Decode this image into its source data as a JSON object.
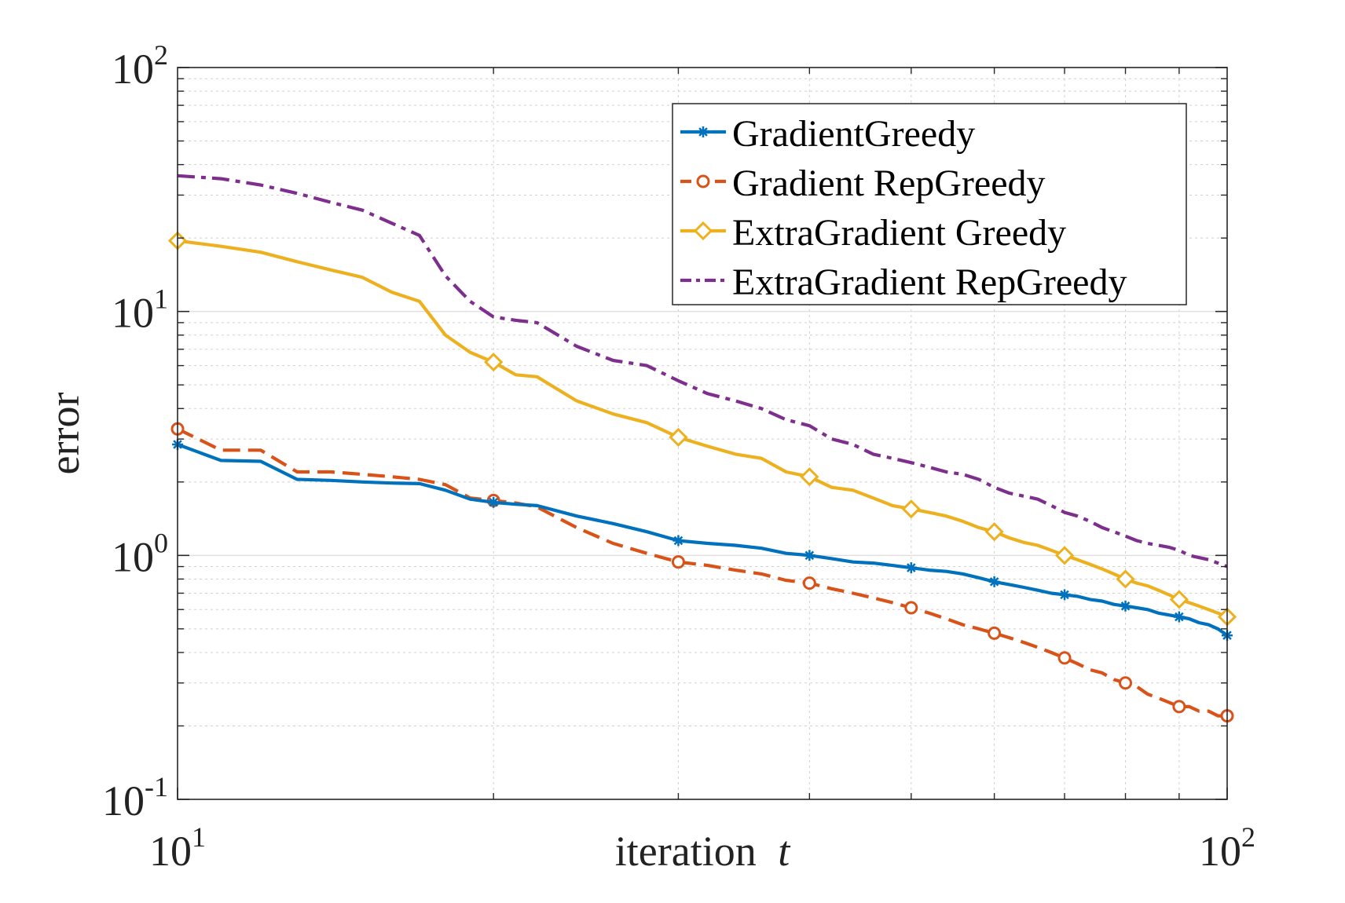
{
  "chart_data": {
    "type": "line",
    "xscale": "log",
    "yscale": "log",
    "xlim": [
      10,
      100
    ],
    "ylim": [
      0.1,
      100
    ],
    "xlabel": "iteration",
    "xlabel_var": "t",
    "ylabel": "error",
    "grid": true,
    "legend_position": "top-right",
    "x_ticks": [
      {
        "value": 10,
        "base": "10",
        "exp": "1"
      },
      {
        "value": 100,
        "base": "10",
        "exp": "2"
      }
    ],
    "y_ticks": [
      {
        "value": 0.1,
        "base": "10",
        "exp": "-1"
      },
      {
        "value": 1,
        "base": "10",
        "exp": "0"
      },
      {
        "value": 10,
        "base": "10",
        "exp": "1"
      },
      {
        "value": 100,
        "base": "10",
        "exp": "2"
      }
    ],
    "series": [
      {
        "name": "GradientGreedy",
        "color": "#0072BD",
        "dash": "",
        "marker": "star",
        "x": [
          10,
          11,
          12,
          13,
          14,
          15,
          16,
          17,
          18,
          19,
          20,
          21,
          22,
          24,
          26,
          28,
          30,
          32,
          34,
          36,
          38,
          40,
          42,
          44,
          46,
          48,
          50,
          52,
          54,
          56,
          58,
          60,
          62,
          64,
          66,
          68,
          70,
          72,
          74,
          76,
          78,
          80,
          82,
          84,
          86,
          88,
          90,
          92,
          94,
          96,
          98,
          100
        ],
        "y": [
          2.85,
          2.45,
          2.43,
          2.05,
          2.03,
          2.0,
          1.98,
          1.97,
          1.85,
          1.7,
          1.65,
          1.62,
          1.6,
          1.45,
          1.35,
          1.25,
          1.15,
          1.12,
          1.1,
          1.07,
          1.02,
          1.0,
          0.97,
          0.94,
          0.93,
          0.91,
          0.89,
          0.87,
          0.86,
          0.84,
          0.81,
          0.78,
          0.76,
          0.74,
          0.72,
          0.7,
          0.69,
          0.68,
          0.66,
          0.65,
          0.63,
          0.62,
          0.61,
          0.6,
          0.58,
          0.57,
          0.56,
          0.55,
          0.53,
          0.52,
          0.5,
          0.47
        ],
        "marker_x": [
          10,
          20,
          30,
          40,
          50,
          60,
          70,
          80,
          90,
          100
        ]
      },
      {
        "name": "Gradient RepGreedy",
        "color": "#D95319",
        "dash": "22,10",
        "marker": "circle",
        "x": [
          10,
          11,
          12,
          13,
          14,
          15,
          16,
          17,
          18,
          19,
          20,
          21,
          22,
          24,
          26,
          28,
          30,
          32,
          34,
          36,
          38,
          40,
          42,
          44,
          46,
          48,
          50,
          52,
          54,
          56,
          58,
          60,
          62,
          64,
          66,
          68,
          70,
          72,
          74,
          76,
          78,
          80,
          82,
          84,
          86,
          88,
          90,
          92,
          94,
          96,
          98,
          100
        ],
        "y": [
          3.3,
          2.7,
          2.7,
          2.2,
          2.2,
          2.15,
          2.1,
          2.05,
          1.95,
          1.72,
          1.68,
          1.64,
          1.58,
          1.3,
          1.12,
          1.02,
          0.94,
          0.91,
          0.87,
          0.84,
          0.79,
          0.77,
          0.73,
          0.7,
          0.67,
          0.64,
          0.61,
          0.58,
          0.55,
          0.52,
          0.5,
          0.48,
          0.46,
          0.44,
          0.42,
          0.4,
          0.38,
          0.36,
          0.34,
          0.33,
          0.31,
          0.3,
          0.29,
          0.27,
          0.26,
          0.25,
          0.24,
          0.24,
          0.23,
          0.23,
          0.22,
          0.22
        ],
        "marker_x": [
          10,
          20,
          30,
          40,
          50,
          60,
          70,
          80,
          90,
          100
        ]
      },
      {
        "name": "ExtraGradient Greedy",
        "color": "#EDB120",
        "dash": "",
        "marker": "diamond",
        "x": [
          10,
          11,
          12,
          13,
          14,
          15,
          16,
          17,
          18,
          19,
          20,
          21,
          22,
          24,
          26,
          28,
          30,
          32,
          34,
          36,
          38,
          40,
          42,
          44,
          46,
          48,
          50,
          52,
          54,
          56,
          58,
          60,
          62,
          64,
          66,
          68,
          70,
          72,
          74,
          76,
          78,
          80,
          82,
          84,
          86,
          88,
          90,
          92,
          94,
          96,
          98,
          100
        ],
        "y": [
          19.5,
          18.5,
          17.5,
          16.0,
          14.8,
          13.8,
          12.0,
          11.0,
          8.0,
          6.8,
          6.2,
          5.5,
          5.4,
          4.3,
          3.8,
          3.5,
          3.05,
          2.8,
          2.6,
          2.5,
          2.2,
          2.1,
          1.9,
          1.85,
          1.72,
          1.6,
          1.55,
          1.5,
          1.45,
          1.38,
          1.3,
          1.25,
          1.18,
          1.13,
          1.1,
          1.05,
          1.0,
          0.96,
          0.92,
          0.88,
          0.84,
          0.8,
          0.77,
          0.75,
          0.72,
          0.69,
          0.66,
          0.64,
          0.62,
          0.6,
          0.58,
          0.56
        ],
        "marker_x": [
          10,
          20,
          30,
          40,
          50,
          60,
          70,
          80,
          90,
          100
        ]
      },
      {
        "name": "ExtraGradient RepGreedy",
        "color": "#7E2F8E",
        "dash": "22,8,6,8",
        "marker": "none",
        "x": [
          10,
          11,
          12,
          13,
          14,
          15,
          16,
          17,
          18,
          19,
          20,
          21,
          22,
          24,
          26,
          28,
          30,
          32,
          34,
          36,
          38,
          40,
          42,
          44,
          46,
          48,
          50,
          52,
          54,
          56,
          58,
          60,
          62,
          64,
          66,
          68,
          70,
          72,
          74,
          76,
          78,
          80,
          82,
          84,
          86,
          88,
          90,
          92,
          94,
          96,
          98,
          100
        ],
        "y": [
          36.0,
          35.0,
          33.0,
          30.5,
          28.0,
          26.0,
          23.0,
          20.5,
          14.0,
          11.0,
          9.5,
          9.2,
          9.0,
          7.2,
          6.3,
          6.0,
          5.2,
          4.6,
          4.3,
          4.0,
          3.6,
          3.4,
          3.0,
          2.85,
          2.6,
          2.5,
          2.4,
          2.3,
          2.2,
          2.15,
          2.05,
          1.9,
          1.8,
          1.75,
          1.7,
          1.6,
          1.5,
          1.45,
          1.38,
          1.3,
          1.25,
          1.2,
          1.15,
          1.12,
          1.1,
          1.08,
          1.05,
          1.0,
          0.98,
          0.96,
          0.93,
          0.9
        ],
        "marker_x": []
      }
    ]
  }
}
